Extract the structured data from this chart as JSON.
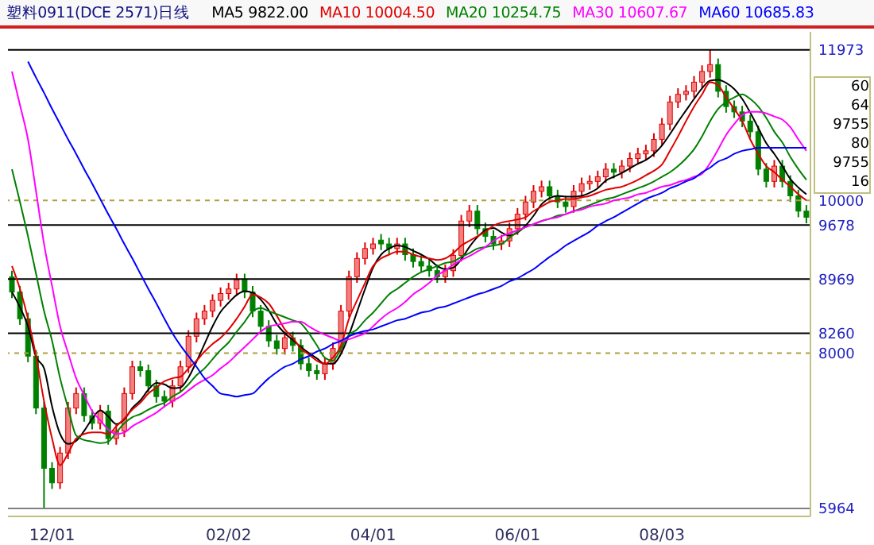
{
  "chart_data": {
    "type": "candlestick",
    "title": "塑料0911(DCE 2571)日线",
    "legend": "top",
    "categories": [
      null,
      null,
      null,
      null,
      null,
      "12/01",
      null,
      null,
      null,
      null,
      null,
      null,
      null,
      null,
      null,
      null,
      null,
      null,
      null,
      null,
      null,
      null,
      null,
      null,
      null,
      null,
      null,
      "02/02",
      null,
      null,
      null,
      null,
      null,
      null,
      null,
      null,
      null,
      null,
      null,
      null,
      null,
      null,
      null,
      null,
      null,
      "04/01",
      null,
      null,
      null,
      null,
      null,
      null,
      null,
      null,
      null,
      null,
      null,
      null,
      null,
      null,
      null,
      null,
      null,
      "06/01",
      null,
      null,
      null,
      null,
      null,
      null,
      null,
      null,
      null,
      null,
      null,
      null,
      null,
      null,
      null,
      null,
      null,
      "08/03",
      null,
      null,
      null,
      null,
      null,
      null,
      null,
      null,
      null,
      null,
      null,
      null,
      null,
      null,
      null,
      null,
      null,
      null
    ],
    "ohlc": [
      [
        9000,
        9080,
        8720,
        8800
      ],
      [
        8800,
        8880,
        8370,
        8450
      ],
      [
        8450,
        8530,
        7880,
        7960
      ],
      [
        7960,
        8040,
        7200,
        7280
      ],
      [
        7280,
        7360,
        5964,
        6490
      ],
      [
        6490,
        6570,
        6220,
        6300
      ],
      [
        6300,
        6770,
        6220,
        6690
      ],
      [
        6690,
        7360,
        6610,
        7280
      ],
      [
        7280,
        7550,
        7200,
        7470
      ],
      [
        7470,
        7550,
        7100,
        7180
      ],
      [
        7180,
        7260,
        7000,
        7080
      ],
      [
        7080,
        7320,
        7000,
        7240
      ],
      [
        7240,
        7320,
        6800,
        6880
      ],
      [
        6880,
        7060,
        6800,
        6980
      ],
      [
        6980,
        7550,
        6900,
        7470
      ],
      [
        7470,
        7900,
        7390,
        7820
      ],
      [
        7820,
        7900,
        7690,
        7770
      ],
      [
        7770,
        7850,
        7490,
        7570
      ],
      [
        7570,
        7650,
        7350,
        7430
      ],
      [
        7430,
        7510,
        7290,
        7370
      ],
      [
        7370,
        7650,
        7290,
        7570
      ],
      [
        7570,
        7900,
        7490,
        7820
      ],
      [
        7820,
        8300,
        7740,
        8220
      ],
      [
        8220,
        8530,
        8140,
        8450
      ],
      [
        8450,
        8630,
        8370,
        8550
      ],
      [
        8550,
        8770,
        8470,
        8690
      ],
      [
        8690,
        8860,
        8610,
        8780
      ],
      [
        8780,
        8920,
        8700,
        8840
      ],
      [
        8840,
        9040,
        8760,
        8960
      ],
      [
        8960,
        9040,
        8720,
        8800
      ],
      [
        8800,
        8880,
        8470,
        8550
      ],
      [
        8550,
        8630,
        8270,
        8350
      ],
      [
        8350,
        8430,
        8080,
        8160
      ],
      [
        8160,
        8240,
        7980,
        8060
      ],
      [
        8060,
        8280,
        7980,
        8200
      ],
      [
        8200,
        8280,
        8020,
        8100
      ],
      [
        8100,
        8180,
        7780,
        7860
      ],
      [
        7860,
        7940,
        7690,
        7770
      ],
      [
        7770,
        7850,
        7650,
        7730
      ],
      [
        7730,
        7940,
        7650,
        7860
      ],
      [
        7860,
        8140,
        7780,
        8060
      ],
      [
        8060,
        8630,
        7980,
        8550
      ],
      [
        8550,
        9080,
        8470,
        9000
      ],
      [
        9000,
        9320,
        8920,
        9240
      ],
      [
        9240,
        9450,
        9160,
        9370
      ],
      [
        9370,
        9510,
        9290,
        9430
      ],
      [
        9480,
        9560,
        9350,
        9430
      ],
      [
        9430,
        9510,
        9290,
        9370
      ],
      [
        9370,
        9510,
        9290,
        9430
      ],
      [
        9430,
        9510,
        9210,
        9290
      ],
      [
        9290,
        9370,
        9120,
        9200
      ],
      [
        9200,
        9280,
        9060,
        9140
      ],
      [
        9140,
        9220,
        9000,
        9080
      ],
      [
        9080,
        9160,
        8920,
        9000
      ],
      [
        9000,
        9160,
        8920,
        9080
      ],
      [
        9080,
        9360,
        9000,
        9280
      ],
      [
        9280,
        9810,
        9200,
        9730
      ],
      [
        9730,
        9940,
        9650,
        9860
      ],
      [
        9860,
        9940,
        9550,
        9630
      ],
      [
        9630,
        9710,
        9450,
        9530
      ],
      [
        9530,
        9610,
        9350,
        9430
      ],
      [
        9430,
        9550,
        9350,
        9470
      ],
      [
        9470,
        9710,
        9390,
        9630
      ],
      [
        9630,
        9900,
        9550,
        9820
      ],
      [
        9820,
        10060,
        9740,
        9980
      ],
      [
        9980,
        10200,
        9900,
        10120
      ],
      [
        10120,
        10260,
        10040,
        10180
      ],
      [
        10180,
        10260,
        9980,
        10060
      ],
      [
        10060,
        10140,
        9900,
        9980
      ],
      [
        9980,
        10060,
        9840,
        9920
      ],
      [
        9920,
        10200,
        9840,
        10120
      ],
      [
        10120,
        10300,
        10040,
        10220
      ],
      [
        10220,
        10330,
        10140,
        10250
      ],
      [
        10250,
        10390,
        10170,
        10310
      ],
      [
        10310,
        10490,
        10230,
        10410
      ],
      [
        10410,
        10490,
        10290,
        10370
      ],
      [
        10370,
        10530,
        10290,
        10450
      ],
      [
        10450,
        10630,
        10370,
        10550
      ],
      [
        10550,
        10690,
        10470,
        10610
      ],
      [
        10610,
        10730,
        10530,
        10650
      ],
      [
        10650,
        10880,
        10570,
        10800
      ],
      [
        10800,
        11080,
        10720,
        11000
      ],
      [
        11000,
        11370,
        10920,
        11290
      ],
      [
        11290,
        11470,
        11210,
        11390
      ],
      [
        11390,
        11510,
        11310,
        11430
      ],
      [
        11430,
        11630,
        11350,
        11550
      ],
      [
        11550,
        11770,
        11470,
        11690
      ],
      [
        11690,
        11973,
        11610,
        11780
      ],
      [
        11780,
        11860,
        11350,
        11430
      ],
      [
        11430,
        11510,
        11150,
        11230
      ],
      [
        11230,
        11310,
        11080,
        11160
      ],
      [
        11160,
        11240,
        10960,
        11040
      ],
      [
        11040,
        11120,
        10820,
        10900
      ],
      [
        10900,
        10980,
        10330,
        10410
      ],
      [
        10410,
        10490,
        10170,
        10250
      ],
      [
        10250,
        10530,
        10170,
        10450
      ],
      [
        10450,
        10530,
        10170,
        10250
      ],
      [
        10250,
        10330,
        9980,
        10060
      ],
      [
        10060,
        10140,
        9780,
        9860
      ],
      [
        9860,
        9940,
        9700,
        9780
      ]
    ],
    "series": [
      {
        "type": "line",
        "name": "MA5 9822.00",
        "color": "#000000",
        "values": [
          8800,
          8600,
          8350,
          7950,
          7800,
          7300,
          6940,
          6810,
          6850,
          6980,
          7140,
          7250,
          7170,
          7070,
          7130,
          7280,
          7380,
          7520,
          7610,
          7590,
          7540,
          7550,
          7680,
          7890,
          8120,
          8350,
          8540,
          8660,
          8760,
          8810,
          8790,
          8700,
          8560,
          8380,
          8260,
          8170,
          8080,
          8000,
          7930,
          7860,
          7860,
          7990,
          8240,
          8540,
          8840,
          9120,
          9290,
          9370,
          9410,
          9390,
          9340,
          9290,
          9230,
          9140,
          9100,
          9120,
          9230,
          9390,
          9520,
          9610,
          9640,
          9580,
          9540,
          9580,
          9670,
          9800,
          9950,
          10030,
          10060,
          10050,
          10050,
          10060,
          10100,
          10160,
          10260,
          10310,
          10360,
          10420,
          10480,
          10530,
          10610,
          10720,
          10870,
          11030,
          11180,
          11330,
          11470,
          11570,
          11580,
          11540,
          11460,
          11330,
          11150,
          10950,
          10750,
          10610,
          10450,
          10280,
          10170,
          10080
        ]
      },
      {
        "type": "line",
        "name": "MA10 10004.50",
        "color": "#e00000",
        "values": [
          9140,
          8840,
          8450,
          7960,
          7370,
          6880,
          6530,
          6690,
          6880,
          6940,
          6960,
          6960,
          6940,
          7040,
          7140,
          7260,
          7350,
          7470,
          7550,
          7630,
          7670,
          7690,
          7800,
          7900,
          8020,
          8120,
          8200,
          8310,
          8450,
          8610,
          8770,
          8730,
          8650,
          8490,
          8310,
          8200,
          8060,
          7980,
          7900,
          7860,
          7940,
          8100,
          8450,
          8690,
          8920,
          9140,
          9240,
          9290,
          9330,
          9330,
          9290,
          9260,
          9240,
          9220,
          9240,
          9310,
          9410,
          9470,
          9530,
          9590,
          9670,
          9710,
          9730,
          9750,
          9780,
          9860,
          9920,
          9980,
          10000,
          10020,
          10020,
          10040,
          10060,
          10100,
          10140,
          10160,
          10180,
          10220,
          10270,
          10330,
          10390,
          10470,
          10650,
          10840,
          11040,
          11230,
          11390,
          11550,
          11510,
          11350,
          11200,
          11040,
          10800,
          10610,
          10450,
          10370,
          10270,
          10180,
          10080,
          10000
        ]
      },
      {
        "type": "line",
        "name": "MA20 10254.75",
        "color": "#008000",
        "values": [
          10410,
          9980,
          9530,
          9040,
          8550,
          8160,
          7670,
          7280,
          6920,
          6860,
          6840,
          6820,
          6840,
          6960,
          7080,
          7160,
          7200,
          7260,
          7310,
          7350,
          7430,
          7490,
          7590,
          7710,
          7800,
          7920,
          8040,
          8140,
          8280,
          8410,
          8550,
          8590,
          8550,
          8510,
          8470,
          8430,
          8390,
          8260,
          8100,
          7940,
          7900,
          8060,
          8240,
          8310,
          8430,
          8530,
          8650,
          8770,
          8840,
          8920,
          9000,
          9060,
          9100,
          9140,
          9180,
          9200,
          9260,
          9310,
          9370,
          9390,
          9410,
          9430,
          9510,
          9590,
          9650,
          9690,
          9730,
          9760,
          9800,
          9820,
          9860,
          9900,
          9940,
          9980,
          10020,
          10040,
          10080,
          10120,
          10160,
          10200,
          10250,
          10310,
          10370,
          10450,
          10550,
          10670,
          10840,
          11040,
          11200,
          11290,
          11350,
          11390,
          11330,
          11230,
          11080,
          10900,
          10760,
          10570,
          10410,
          10270
        ]
      },
      {
        "type": "line",
        "name": "MA30 10607.67",
        "color": "#ff00ff",
        "values": [
          11690,
          11250,
          10800,
          10120,
          9430,
          8880,
          8350,
          8000,
          7670,
          7450,
          7240,
          7120,
          7000,
          6940,
          6960,
          7040,
          7100,
          7160,
          7220,
          7300,
          7370,
          7430,
          7510,
          7590,
          7650,
          7710,
          7800,
          7880,
          7980,
          8080,
          8180,
          8280,
          8350,
          8370,
          8390,
          8410,
          8410,
          8350,
          8290,
          8240,
          8200,
          8160,
          8180,
          8220,
          8260,
          8350,
          8450,
          8530,
          8590,
          8670,
          8770,
          8840,
          8920,
          9020,
          9080,
          9160,
          9220,
          9270,
          9330,
          9390,
          9470,
          9530,
          9570,
          9610,
          9650,
          9690,
          9730,
          9760,
          9780,
          9820,
          9860,
          9880,
          9920,
          9940,
          9960,
          10000,
          10020,
          10040,
          10080,
          10100,
          10140,
          10180,
          10200,
          10240,
          10270,
          10310,
          10350,
          10490,
          10670,
          10860,
          11000,
          11120,
          11160,
          11160,
          11140,
          11100,
          11060,
          10960,
          10800,
          10650
        ]
      },
      {
        "type": "line",
        "name": "MA60 10685.83",
        "color": "#0000ff",
        "values": [
          null,
          null,
          11820,
          11610,
          11410,
          11200,
          11000,
          10800,
          10610,
          10410,
          10220,
          10020,
          9820,
          9630,
          9430,
          9240,
          9040,
          8840,
          8650,
          8450,
          8260,
          8100,
          7960,
          7820,
          7670,
          7570,
          7470,
          7450,
          7430,
          7450,
          7470,
          7570,
          7670,
          7750,
          7820,
          7860,
          7920,
          7960,
          8020,
          8060,
          8120,
          8160,
          8220,
          8260,
          8290,
          8310,
          8350,
          8390,
          8430,
          8450,
          8490,
          8530,
          8550,
          8590,
          8610,
          8650,
          8690,
          8730,
          8770,
          8800,
          8840,
          8880,
          8940,
          8980,
          9040,
          9100,
          9180,
          9260,
          9330,
          9410,
          9470,
          9530,
          9590,
          9670,
          9730,
          9780,
          9840,
          9900,
          9960,
          10020,
          10060,
          10100,
          10160,
          10200,
          10250,
          10290,
          10370,
          10430,
          10510,
          10550,
          10610,
          10650,
          10670,
          10690,
          10690,
          10690,
          10690,
          10690,
          10690,
          10690
        ]
      }
    ],
    "ylim": [
      5860,
      12210
    ],
    "yticks": [
      5964,
      8000,
      8260,
      8969,
      9678,
      10000,
      11973
    ],
    "ref_lines": [
      {
        "axis": "y",
        "value": 11973,
        "color": "#000000",
        "line_style": "solid"
      },
      {
        "axis": "y",
        "value": 10000,
        "color": "#b0a040",
        "line_style": "dashed"
      },
      {
        "axis": "y",
        "value": 9678,
        "color": "#000000",
        "line_style": "solid"
      },
      {
        "axis": "y",
        "value": 8969,
        "color": "#000000",
        "line_style": "solid"
      },
      {
        "axis": "y",
        "value": 8260,
        "color": "#000000",
        "line_style": "solid"
      },
      {
        "axis": "y",
        "value": 8000,
        "color": "#b0a040",
        "line_style": "dashed"
      },
      {
        "axis": "y",
        "value": 5964,
        "color": "#808080",
        "line_style": "solid"
      }
    ],
    "annotations": [
      "60",
      "64",
      "9755",
      "80",
      "9755",
      "16"
    ]
  }
}
